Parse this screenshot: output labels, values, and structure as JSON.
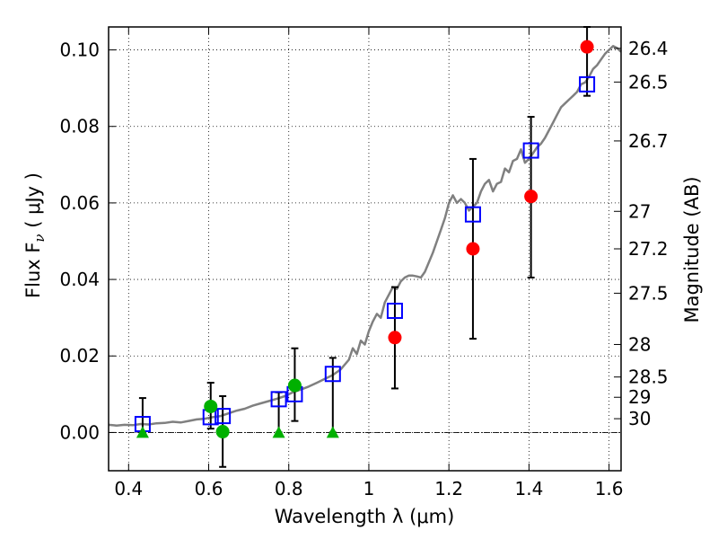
{
  "chart_data": {
    "type": "scatter",
    "xlabel": "Wavelength  λ (μm)",
    "ylabel": "Flux  F",
    "ylabel_sub": "ν",
    "ylabel_unit": "  ( μJy )",
    "y2label": "Magnitude (AB)",
    "xlim": [
      0.35,
      1.63
    ],
    "ylim": [
      -0.01,
      0.106
    ],
    "xticks": [
      0.4,
      0.6,
      0.8,
      1.0,
      1.2,
      1.4,
      1.6
    ],
    "xtick_labels": [
      "0.4",
      "0.6",
      "0.8",
      "1",
      "1.2",
      "1.4",
      "1.6"
    ],
    "yticks": [
      0.0,
      0.02,
      0.04,
      0.06,
      0.08,
      0.1
    ],
    "ytick_labels": [
      "0.00",
      "0.02",
      "0.04",
      "0.06",
      "0.08",
      "0.10"
    ],
    "mag_ticks": [
      {
        "flux": 0.1004,
        "label": "26.4"
      },
      {
        "flux": 0.0916,
        "label": "26.5"
      },
      {
        "flux": 0.0762,
        "label": "26.7"
      },
      {
        "flux": 0.0578,
        "label": "27"
      },
      {
        "flux": 0.048,
        "label": "27.2"
      },
      {
        "flux": 0.0364,
        "label": "27.5"
      },
      {
        "flux": 0.023,
        "label": "28"
      },
      {
        "flux": 0.0145,
        "label": "28.5"
      },
      {
        "flux": 0.0092,
        "label": "29"
      },
      {
        "flux": 0.0036,
        "label": "30"
      }
    ],
    "grid": true,
    "zero_line": true,
    "colors": {
      "model": "#808080",
      "squares": "#0000ff",
      "red": "#ff0000",
      "green": "#00b000",
      "errorbar": "#000000"
    },
    "series": [
      {
        "kind": "line",
        "points": [
          [
            0.35,
            0.002
          ],
          [
            0.37,
            0.0018
          ],
          [
            0.39,
            0.002
          ],
          [
            0.41,
            0.0019
          ],
          [
            0.43,
            0.0022
          ],
          [
            0.45,
            0.0021
          ],
          [
            0.47,
            0.0024
          ],
          [
            0.49,
            0.0025
          ],
          [
            0.51,
            0.0028
          ],
          [
            0.53,
            0.0026
          ],
          [
            0.55,
            0.003
          ],
          [
            0.57,
            0.0034
          ],
          [
            0.59,
            0.0036
          ],
          [
            0.61,
            0.004
          ],
          [
            0.63,
            0.0043
          ],
          [
            0.65,
            0.005
          ],
          [
            0.67,
            0.0057
          ],
          [
            0.69,
            0.0062
          ],
          [
            0.71,
            0.007
          ],
          [
            0.73,
            0.0076
          ],
          [
            0.75,
            0.0082
          ],
          [
            0.77,
            0.0088
          ],
          [
            0.79,
            0.0095
          ],
          [
            0.81,
            0.0105
          ],
          [
            0.83,
            0.0112
          ],
          [
            0.85,
            0.012
          ],
          [
            0.87,
            0.013
          ],
          [
            0.89,
            0.014
          ],
          [
            0.91,
            0.015
          ],
          [
            0.93,
            0.0165
          ],
          [
            0.95,
            0.019
          ],
          [
            0.96,
            0.022
          ],
          [
            0.97,
            0.0205
          ],
          [
            0.98,
            0.024
          ],
          [
            0.99,
            0.023
          ],
          [
            1.0,
            0.0265
          ],
          [
            1.01,
            0.029
          ],
          [
            1.02,
            0.031
          ],
          [
            1.03,
            0.03
          ],
          [
            1.04,
            0.034
          ],
          [
            1.05,
            0.036
          ],
          [
            1.06,
            0.038
          ],
          [
            1.07,
            0.0375
          ],
          [
            1.08,
            0.0395
          ],
          [
            1.09,
            0.0405
          ],
          [
            1.1,
            0.041
          ],
          [
            1.11,
            0.041
          ],
          [
            1.12,
            0.0408
          ],
          [
            1.13,
            0.0405
          ],
          [
            1.14,
            0.042
          ],
          [
            1.15,
            0.0445
          ],
          [
            1.16,
            0.047
          ],
          [
            1.17,
            0.05
          ],
          [
            1.18,
            0.053
          ],
          [
            1.19,
            0.056
          ],
          [
            1.2,
            0.06
          ],
          [
            1.21,
            0.062
          ],
          [
            1.22,
            0.06
          ],
          [
            1.23,
            0.061
          ],
          [
            1.24,
            0.06
          ],
          [
            1.25,
            0.058
          ],
          [
            1.26,
            0.059
          ],
          [
            1.27,
            0.06
          ],
          [
            1.28,
            0.063
          ],
          [
            1.29,
            0.065
          ],
          [
            1.3,
            0.066
          ],
          [
            1.31,
            0.063
          ],
          [
            1.32,
            0.065
          ],
          [
            1.33,
            0.0655
          ],
          [
            1.34,
            0.069
          ],
          [
            1.35,
            0.068
          ],
          [
            1.36,
            0.071
          ],
          [
            1.37,
            0.0715
          ],
          [
            1.38,
            0.074
          ],
          [
            1.39,
            0.0705
          ],
          [
            1.4,
            0.0715
          ],
          [
            1.41,
            0.073
          ],
          [
            1.42,
            0.0745
          ],
          [
            1.43,
            0.0755
          ],
          [
            1.44,
            0.077
          ],
          [
            1.45,
            0.079
          ],
          [
            1.46,
            0.081
          ],
          [
            1.47,
            0.083
          ],
          [
            1.48,
            0.085
          ],
          [
            1.49,
            0.086
          ],
          [
            1.5,
            0.087
          ],
          [
            1.51,
            0.088
          ],
          [
            1.52,
            0.089
          ],
          [
            1.53,
            0.091
          ],
          [
            1.54,
            0.0915
          ],
          [
            1.55,
            0.093
          ],
          [
            1.56,
            0.095
          ],
          [
            1.57,
            0.096
          ],
          [
            1.58,
            0.0975
          ],
          [
            1.59,
            0.099
          ],
          [
            1.6,
            0.1
          ],
          [
            1.61,
            0.101
          ],
          [
            1.62,
            0.1005
          ],
          [
            1.63,
            0.0995
          ]
        ]
      },
      {
        "kind": "errorbars",
        "points": [
          {
            "x": 0.435,
            "lo": 0.0,
            "hi": 0.009
          },
          {
            "x": 0.605,
            "lo": 0.001,
            "hi": 0.013
          },
          {
            "x": 0.635,
            "lo": -0.009,
            "hi": 0.0095
          },
          {
            "x": 0.775,
            "lo": 0.0,
            "hi": 0.0105
          },
          {
            "x": 0.815,
            "lo": 0.003,
            "hi": 0.022
          },
          {
            "x": 0.91,
            "lo": 0.0,
            "hi": 0.0195
          },
          {
            "x": 1.065,
            "lo": 0.0115,
            "hi": 0.038
          },
          {
            "x": 1.26,
            "lo": 0.0245,
            "hi": 0.0715
          },
          {
            "x": 1.405,
            "lo": 0.0405,
            "hi": 0.0825
          },
          {
            "x": 1.545,
            "lo": 0.088,
            "hi": 0.106
          }
        ]
      },
      {
        "kind": "squares",
        "points": [
          [
            0.435,
            0.0022
          ],
          [
            0.605,
            0.004
          ],
          [
            0.635,
            0.0043
          ],
          [
            0.775,
            0.0087
          ],
          [
            0.815,
            0.01
          ],
          [
            0.91,
            0.0153
          ],
          [
            1.065,
            0.0318
          ],
          [
            1.26,
            0.057
          ],
          [
            1.405,
            0.0737
          ],
          [
            1.545,
            0.091
          ]
        ]
      },
      {
        "kind": "circles-red",
        "points": [
          [
            1.065,
            0.0248
          ],
          [
            1.26,
            0.048
          ],
          [
            1.405,
            0.0617
          ],
          [
            1.545,
            0.1008
          ]
        ]
      },
      {
        "kind": "circles-green",
        "points": [
          [
            0.605,
            0.0068
          ],
          [
            0.635,
            0.0002
          ],
          [
            0.815,
            0.0123
          ]
        ]
      },
      {
        "kind": "triangles-green",
        "points": [
          [
            0.435,
            0.0
          ],
          [
            0.775,
            0.0
          ],
          [
            0.91,
            0.0
          ]
        ]
      }
    ]
  }
}
